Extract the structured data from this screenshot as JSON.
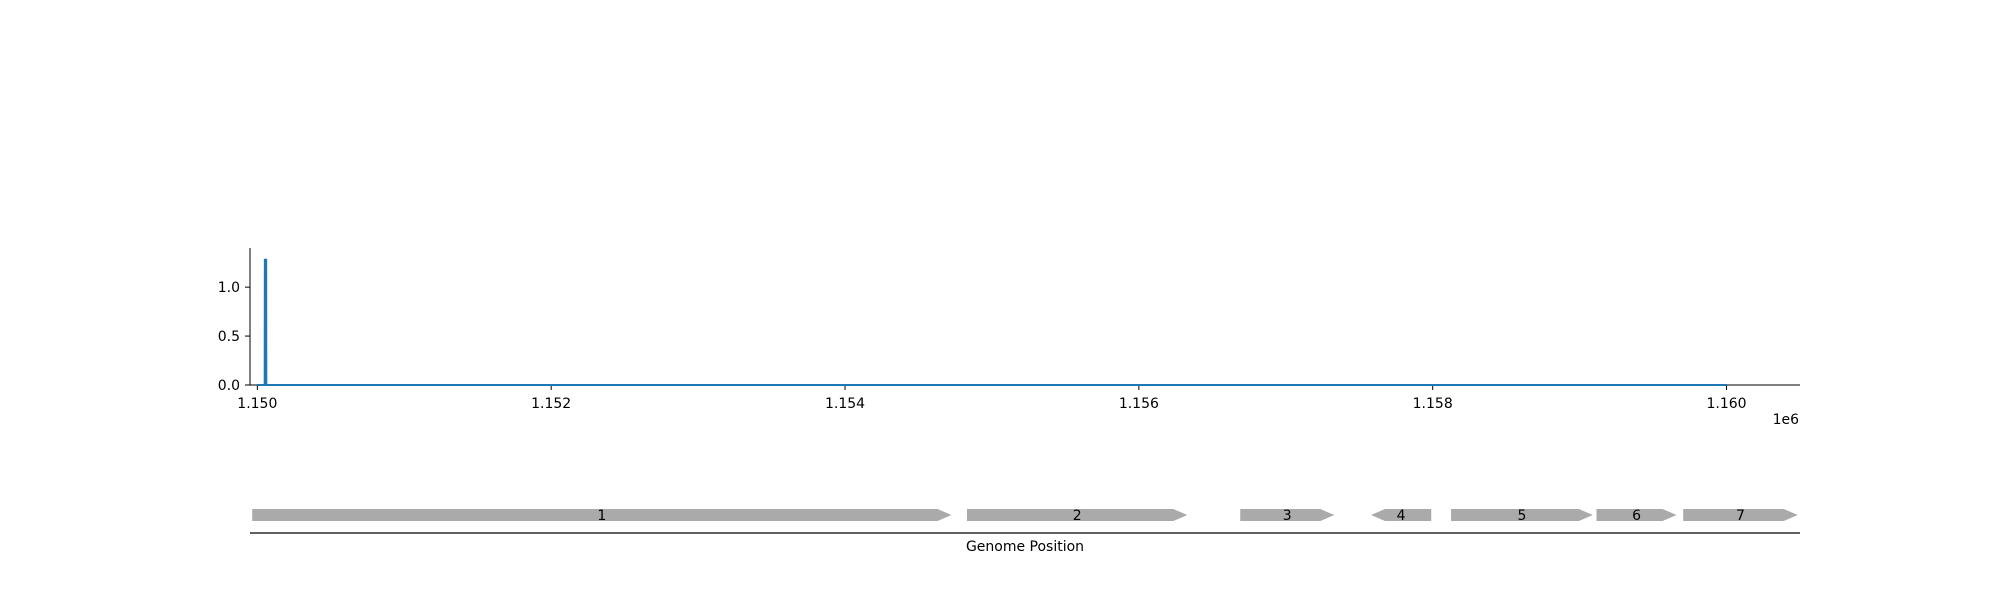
{
  "chart_data": {
    "type": "line",
    "x": [
      1150000,
      1150050,
      1150051,
      1150060,
      1150061,
      1160000
    ],
    "series": [
      {
        "values": [
          0,
          0,
          1.28,
          1.28,
          0,
          0
        ],
        "color": "#1f77b4"
      }
    ],
    "xlim": [
      1149950,
      1160500
    ],
    "ylim": [
      0,
      1.4
    ],
    "xticks": [
      1150000,
      1152000,
      1154000,
      1156000,
      1158000,
      1160000
    ],
    "xtick_labels": [
      "1.150",
      "1.152",
      "1.154",
      "1.156",
      "1.158",
      "1.160"
    ],
    "x_offset_label": "1e6",
    "yticks": [
      0,
      0.5,
      1.0
    ],
    "ytick_labels": [
      "0.0",
      "0.5",
      "1.0"
    ],
    "grid": false,
    "xlabel": "Genome Position",
    "genes": [
      {
        "label": "1",
        "start": 1149965,
        "end": 1154725,
        "strand": "+"
      },
      {
        "label": "2",
        "start": 1154830,
        "end": 1156330,
        "strand": "+"
      },
      {
        "label": "3",
        "start": 1156690,
        "end": 1157330,
        "strand": "+"
      },
      {
        "label": "4",
        "start": 1157580,
        "end": 1157990,
        "strand": "-"
      },
      {
        "label": "5",
        "start": 1158125,
        "end": 1159090,
        "strand": "+"
      },
      {
        "label": "6",
        "start": 1159115,
        "end": 1159660,
        "strand": "+"
      },
      {
        "label": "7",
        "start": 1159705,
        "end": 1160485,
        "strand": "+"
      }
    ],
    "gene_color": "#aaaaaa"
  }
}
